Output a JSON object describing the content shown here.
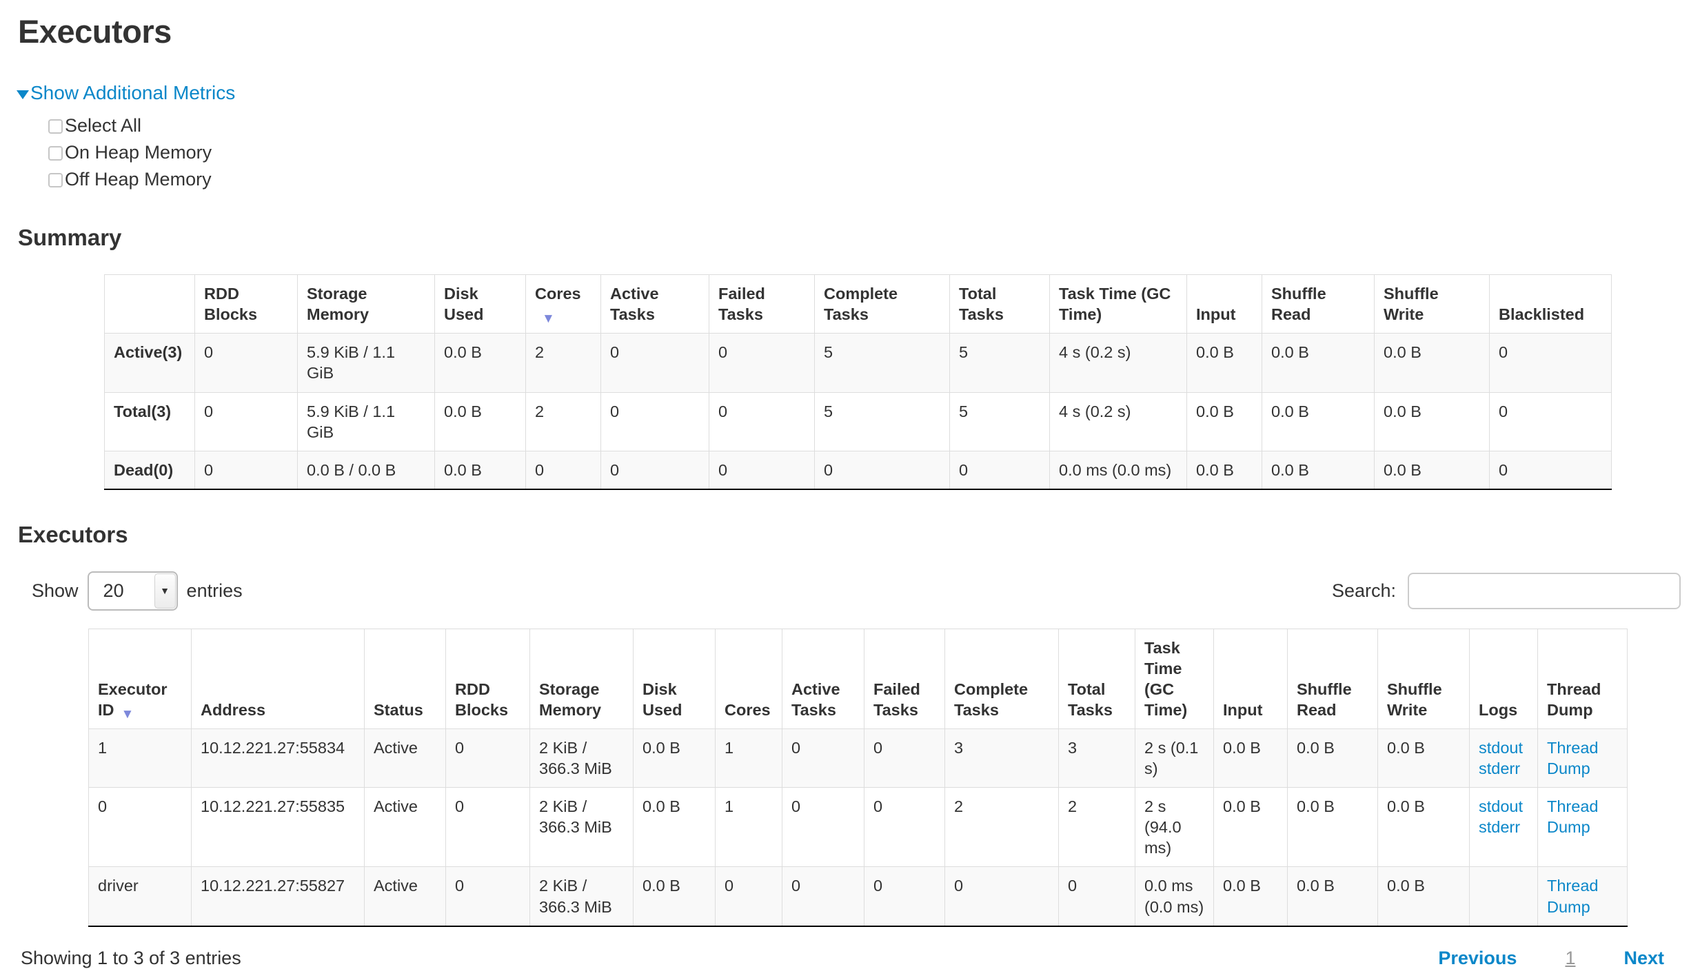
{
  "header": {
    "title": "Executors"
  },
  "metrics": {
    "toggle_label": "Show Additional Metrics",
    "caret_icon": "▼",
    "checkboxes": [
      {
        "label": "Select All",
        "checked": false
      },
      {
        "label": "On Heap Memory",
        "checked": false
      },
      {
        "label": "Off Heap Memory",
        "checked": false
      }
    ]
  },
  "summary": {
    "heading": "Summary",
    "table": {
      "columns": [
        "",
        "RDD Blocks",
        "Storage Memory",
        "Disk Used",
        "Cores",
        "Active Tasks",
        "Failed Tasks",
        "Complete Tasks",
        "Total Tasks",
        "Task Time (GC Time)",
        "Input",
        "Shuffle Read",
        "Shuffle Write",
        "Blacklisted"
      ],
      "sorted_column": "Cores",
      "sort_icon": "▼",
      "rows": [
        {
          "label": "Active(3)",
          "values": [
            "0",
            "5.9 KiB / 1.1 GiB",
            "0.0 B",
            "2",
            "0",
            "0",
            "5",
            "5",
            "4 s (0.2 s)",
            "0.0 B",
            "0.0 B",
            "0.0 B",
            "0"
          ]
        },
        {
          "label": "Total(3)",
          "values": [
            "0",
            "5.9 KiB / 1.1 GiB",
            "0.0 B",
            "2",
            "0",
            "0",
            "5",
            "5",
            "4 s (0.2 s)",
            "0.0 B",
            "0.0 B",
            "0.0 B",
            "0"
          ]
        },
        {
          "label": "Dead(0)",
          "values": [
            "0",
            "0.0 B / 0.0 B",
            "0.0 B",
            "0",
            "0",
            "0",
            "0",
            "0",
            "0.0 ms (0.0 ms)",
            "0.0 B",
            "0.0 B",
            "0.0 B",
            "0"
          ]
        }
      ]
    }
  },
  "executors": {
    "heading": "Executors",
    "controls": {
      "show_label": "Show",
      "page_size": "20",
      "entries_label": "entries",
      "search_label": "Search:",
      "search_value": ""
    },
    "table": {
      "columns": [
        "Executor ID",
        "Address",
        "Status",
        "RDD Blocks",
        "Storage Memory",
        "Disk Used",
        "Cores",
        "Active Tasks",
        "Failed Tasks",
        "Complete Tasks",
        "Total Tasks",
        "Task Time (GC Time)",
        "Input",
        "Shuffle Read",
        "Shuffle Write",
        "Logs",
        "Thread Dump"
      ],
      "sorted_column": "Executor ID",
      "sort_icon": "▼",
      "rows": [
        {
          "values": [
            "1",
            "10.12.221.27:55834",
            "Active",
            "0",
            "2 KiB / 366.3 MiB",
            "0.0 B",
            "1",
            "0",
            "0",
            "3",
            "3",
            "2 s (0.1 s)",
            "0.0 B",
            "0.0 B",
            "0.0 B"
          ],
          "logs": [
            "stdout",
            "stderr"
          ],
          "thread_dump": "Thread Dump"
        },
        {
          "values": [
            "0",
            "10.12.221.27:55835",
            "Active",
            "0",
            "2 KiB / 366.3 MiB",
            "0.0 B",
            "1",
            "0",
            "0",
            "2",
            "2",
            "2 s (94.0 ms)",
            "0.0 B",
            "0.0 B",
            "0.0 B"
          ],
          "logs": [
            "stdout",
            "stderr"
          ],
          "thread_dump": "Thread Dump"
        },
        {
          "values": [
            "driver",
            "10.12.221.27:55827",
            "Active",
            "0",
            "2 KiB / 366.3 MiB",
            "0.0 B",
            "0",
            "0",
            "0",
            "0",
            "0",
            "0.0 ms (0.0 ms)",
            "0.0 B",
            "0.0 B",
            "0.0 B"
          ],
          "logs": [],
          "thread_dump": "Thread Dump"
        }
      ]
    },
    "footer": {
      "info": "Showing 1 to 3 of 3 entries",
      "previous_label": "Previous",
      "current_page": "1",
      "next_label": "Next"
    }
  },
  "colors": {
    "link_blue": "#0b87c9",
    "sort_arrow": "#7d88db",
    "row_stripe": "#f9f9f9",
    "cell_border": "#dddddd",
    "text": "#333333",
    "pagination_current": "#999999"
  }
}
